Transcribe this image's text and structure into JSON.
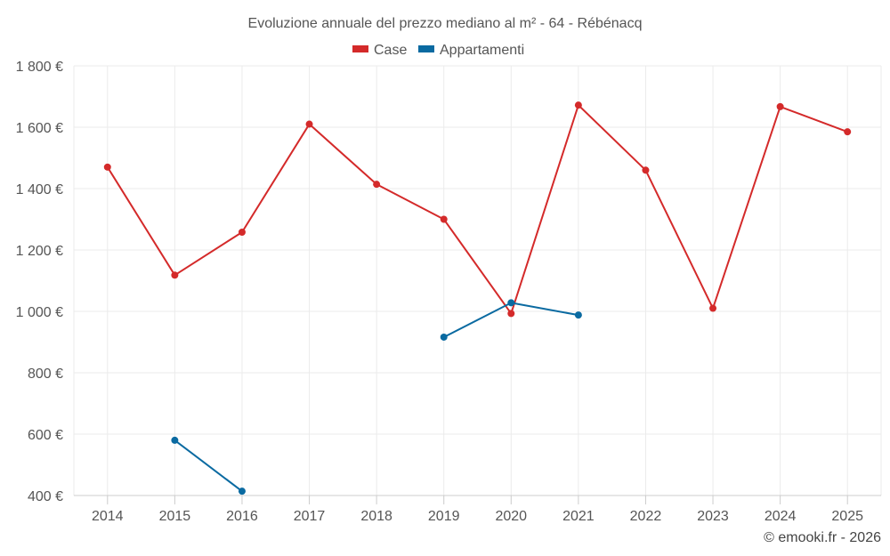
{
  "chart_data": {
    "type": "line",
    "title": "Evoluzione annuale del prezzo mediano al m² - 64 - Rébénacq",
    "categories": [
      "2014",
      "2015",
      "2016",
      "2017",
      "2018",
      "2019",
      "2020",
      "2021",
      "2022",
      "2023",
      "2024",
      "2025"
    ],
    "series": [
      {
        "name": "Case",
        "color": "#d42a2a",
        "values": [
          1470,
          1118,
          1258,
          1610,
          1414,
          1300,
          993,
          1672,
          1460,
          1010,
          1667,
          1585
        ]
      },
      {
        "name": "Appartamenti",
        "color": "#0a6aa1",
        "values": [
          null,
          580,
          414,
          null,
          null,
          916,
          1028,
          988,
          null,
          null,
          null,
          null
        ]
      }
    ],
    "ylim": [
      400,
      1800
    ],
    "yticks": [
      400,
      600,
      800,
      1000,
      1200,
      1400,
      1600,
      1800
    ],
    "ytick_labels": [
      "400 €",
      "600 €",
      "800 €",
      "1 000 €",
      "1 200 €",
      "1 400 €",
      "1 600 €",
      "1 800 €"
    ],
    "xlabel": "",
    "ylabel": "",
    "grid": true,
    "legend_position": "top-center"
  },
  "credit": "© emooki.fr - 2026"
}
